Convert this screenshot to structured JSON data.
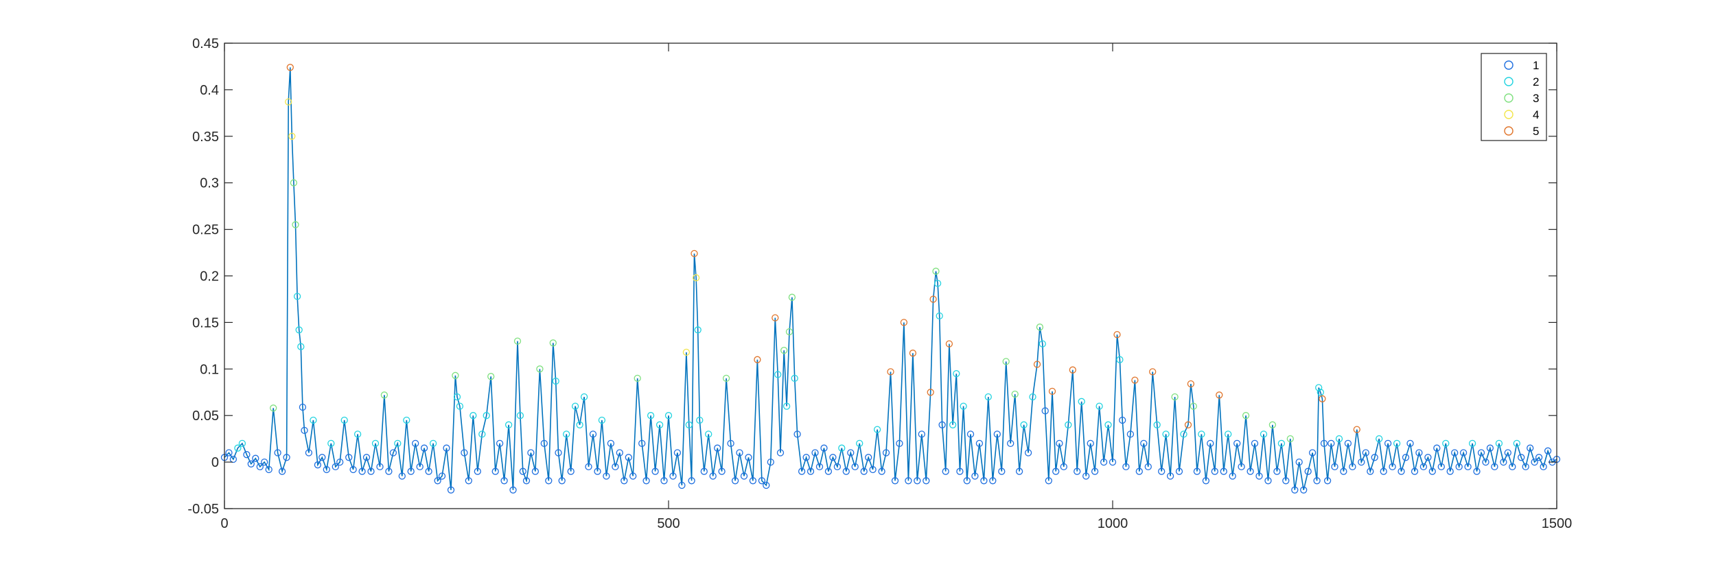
{
  "chart_data": {
    "type": "line",
    "title": "",
    "xlabel": "",
    "ylabel": "",
    "xlim": [
      0,
      1500
    ],
    "ylim": [
      -0.05,
      0.45
    ],
    "x_ticks": [
      0,
      500,
      1000,
      1500
    ],
    "x_tick_labels": [
      "0",
      "500",
      "1000",
      "1500"
    ],
    "y_ticks": [
      -0.05,
      0,
      0.05,
      0.1,
      0.15,
      0.2,
      0.25,
      0.3,
      0.35,
      0.4,
      0.45
    ],
    "y_tick_labels": [
      "-0.05",
      "0",
      "0.05",
      "0.1",
      "0.15",
      "0.2",
      "0.25",
      "0.3",
      "0.35",
      "0.4",
      "0.45"
    ],
    "grid": false,
    "legend_position": "top-right",
    "line_color": "#0072BD",
    "series": [
      {
        "name": "1",
        "color": "#1f6fe0"
      },
      {
        "name": "2",
        "color": "#21d3e0"
      },
      {
        "name": "3",
        "color": "#7fe07f"
      },
      {
        "name": "4",
        "color": "#f2e54a"
      },
      {
        "name": "5",
        "color": "#e0742a"
      }
    ],
    "points": [
      [
        0,
        0.005,
        1
      ],
      [
        5,
        0.01,
        1
      ],
      [
        10,
        0.003,
        1
      ],
      [
        15,
        0.015,
        2
      ],
      [
        20,
        0.02,
        2
      ],
      [
        25,
        0.008,
        1
      ],
      [
        30,
        -0.002,
        1
      ],
      [
        35,
        0.004,
        1
      ],
      [
        40,
        -0.005,
        1
      ],
      [
        45,
        0.0,
        1
      ],
      [
        50,
        -0.008,
        1
      ],
      [
        55,
        0.058,
        3
      ],
      [
        60,
        0.01,
        1
      ],
      [
        65,
        -0.01,
        1
      ],
      [
        70,
        0.005,
        1
      ],
      [
        72,
        0.387,
        4
      ],
      [
        74,
        0.424,
        5
      ],
      [
        76,
        0.35,
        4
      ],
      [
        78,
        0.3,
        3
      ],
      [
        80,
        0.255,
        3
      ],
      [
        82,
        0.178,
        2
      ],
      [
        84,
        0.142,
        2
      ],
      [
        86,
        0.124,
        2
      ],
      [
        88,
        0.059,
        1
      ],
      [
        90,
        0.034,
        1
      ],
      [
        95,
        0.01,
        1
      ],
      [
        100,
        0.045,
        2
      ],
      [
        105,
        -0.003,
        1
      ],
      [
        110,
        0.005,
        1
      ],
      [
        115,
        -0.008,
        1
      ],
      [
        120,
        0.02,
        2
      ],
      [
        125,
        -0.005,
        1
      ],
      [
        130,
        0.0,
        1
      ],
      [
        135,
        0.045,
        2
      ],
      [
        140,
        0.005,
        1
      ],
      [
        145,
        -0.008,
        1
      ],
      [
        150,
        0.03,
        2
      ],
      [
        155,
        -0.01,
        1
      ],
      [
        160,
        0.005,
        1
      ],
      [
        165,
        -0.01,
        1
      ],
      [
        170,
        0.02,
        2
      ],
      [
        175,
        -0.005,
        1
      ],
      [
        180,
        0.072,
        3
      ],
      [
        185,
        -0.01,
        1
      ],
      [
        190,
        0.01,
        1
      ],
      [
        195,
        0.02,
        2
      ],
      [
        200,
        -0.015,
        1
      ],
      [
        205,
        0.045,
        2
      ],
      [
        210,
        -0.01,
        1
      ],
      [
        215,
        0.02,
        1
      ],
      [
        220,
        -0.005,
        1
      ],
      [
        225,
        0.015,
        1
      ],
      [
        230,
        -0.01,
        1
      ],
      [
        235,
        0.02,
        2
      ],
      [
        240,
        -0.02,
        1
      ],
      [
        245,
        -0.015,
        1
      ],
      [
        250,
        0.015,
        1
      ],
      [
        255,
        -0.03,
        1
      ],
      [
        260,
        0.093,
        3
      ],
      [
        262,
        0.07,
        2
      ],
      [
        265,
        0.06,
        2
      ],
      [
        270,
        0.01,
        1
      ],
      [
        275,
        -0.02,
        1
      ],
      [
        280,
        0.05,
        2
      ],
      [
        285,
        -0.01,
        1
      ],
      [
        290,
        0.03,
        2
      ],
      [
        295,
        0.05,
        2
      ],
      [
        300,
        0.092,
        3
      ],
      [
        305,
        -0.01,
        1
      ],
      [
        310,
        0.02,
        1
      ],
      [
        315,
        -0.02,
        1
      ],
      [
        320,
        0.04,
        2
      ],
      [
        325,
        -0.03,
        1
      ],
      [
        330,
        0.13,
        3
      ],
      [
        333,
        0.05,
        2
      ],
      [
        336,
        -0.01,
        1
      ],
      [
        340,
        -0.02,
        1
      ],
      [
        345,
        0.01,
        1
      ],
      [
        350,
        -0.01,
        1
      ],
      [
        355,
        0.1,
        3
      ],
      [
        360,
        0.02,
        1
      ],
      [
        365,
        -0.02,
        1
      ],
      [
        370,
        0.128,
        3
      ],
      [
        373,
        0.087,
        2
      ],
      [
        376,
        0.01,
        1
      ],
      [
        380,
        -0.02,
        1
      ],
      [
        385,
        0.03,
        2
      ],
      [
        390,
        -0.01,
        1
      ],
      [
        395,
        0.06,
        2
      ],
      [
        400,
        0.04,
        2
      ],
      [
        405,
        0.07,
        2
      ],
      [
        410,
        -0.005,
        1
      ],
      [
        415,
        0.03,
        1
      ],
      [
        420,
        -0.01,
        1
      ],
      [
        425,
        0.045,
        2
      ],
      [
        430,
        -0.015,
        1
      ],
      [
        435,
        0.02,
        1
      ],
      [
        440,
        -0.005,
        1
      ],
      [
        445,
        0.01,
        1
      ],
      [
        450,
        -0.02,
        1
      ],
      [
        455,
        0.005,
        1
      ],
      [
        460,
        -0.015,
        1
      ],
      [
        465,
        0.09,
        3
      ],
      [
        470,
        0.02,
        1
      ],
      [
        475,
        -0.02,
        1
      ],
      [
        480,
        0.05,
        2
      ],
      [
        485,
        -0.01,
        1
      ],
      [
        490,
        0.04,
        2
      ],
      [
        495,
        -0.02,
        1
      ],
      [
        500,
        0.05,
        2
      ],
      [
        505,
        -0.015,
        1
      ],
      [
        510,
        0.01,
        1
      ],
      [
        515,
        -0.025,
        1
      ],
      [
        520,
        0.118,
        4
      ],
      [
        523,
        0.04,
        2
      ],
      [
        526,
        -0.02,
        1
      ],
      [
        529,
        0.224,
        5
      ],
      [
        531,
        0.198,
        4
      ],
      [
        533,
        0.142,
        2
      ],
      [
        535,
        0.045,
        2
      ],
      [
        540,
        -0.01,
        1
      ],
      [
        545,
        0.03,
        2
      ],
      [
        550,
        -0.015,
        1
      ],
      [
        555,
        0.015,
        1
      ],
      [
        560,
        -0.01,
        1
      ],
      [
        565,
        0.09,
        3
      ],
      [
        570,
        0.02,
        1
      ],
      [
        575,
        -0.02,
        1
      ],
      [
        580,
        0.01,
        1
      ],
      [
        585,
        -0.015,
        1
      ],
      [
        590,
        0.005,
        1
      ],
      [
        595,
        -0.02,
        1
      ],
      [
        600,
        0.11,
        5
      ],
      [
        605,
        -0.02,
        1
      ],
      [
        610,
        -0.025,
        1
      ],
      [
        615,
        0.0,
        1
      ],
      [
        620,
        0.155,
        5
      ],
      [
        623,
        0.094,
        2
      ],
      [
        626,
        0.01,
        1
      ],
      [
        630,
        0.12,
        3
      ],
      [
        633,
        0.06,
        2
      ],
      [
        636,
        0.14,
        3
      ],
      [
        639,
        0.177,
        3
      ],
      [
        642,
        0.09,
        2
      ],
      [
        645,
        0.03,
        1
      ],
      [
        650,
        -0.01,
        1
      ],
      [
        655,
        0.005,
        1
      ],
      [
        660,
        -0.01,
        1
      ],
      [
        665,
        0.01,
        1
      ],
      [
        670,
        -0.005,
        1
      ],
      [
        675,
        0.015,
        1
      ],
      [
        680,
        -0.01,
        1
      ],
      [
        685,
        0.005,
        1
      ],
      [
        690,
        -0.005,
        1
      ],
      [
        695,
        0.015,
        2
      ],
      [
        700,
        -0.01,
        1
      ],
      [
        705,
        0.01,
        1
      ],
      [
        710,
        -0.005,
        1
      ],
      [
        715,
        0.02,
        2
      ],
      [
        720,
        -0.01,
        1
      ],
      [
        725,
        0.005,
        1
      ],
      [
        730,
        -0.008,
        1
      ],
      [
        735,
        0.035,
        2
      ],
      [
        740,
        -0.01,
        1
      ],
      [
        745,
        0.01,
        1
      ],
      [
        750,
        0.097,
        5
      ],
      [
        755,
        -0.02,
        1
      ],
      [
        760,
        0.02,
        1
      ],
      [
        765,
        0.15,
        5
      ],
      [
        770,
        -0.02,
        1
      ],
      [
        775,
        0.117,
        5
      ],
      [
        780,
        -0.02,
        1
      ],
      [
        785,
        0.03,
        1
      ],
      [
        790,
        -0.02,
        1
      ],
      [
        795,
        0.075,
        5
      ],
      [
        798,
        0.175,
        5
      ],
      [
        801,
        0.205,
        3
      ],
      [
        803,
        0.192,
        2
      ],
      [
        805,
        0.157,
        2
      ],
      [
        808,
        0.04,
        1
      ],
      [
        812,
        -0.01,
        1
      ],
      [
        816,
        0.127,
        5
      ],
      [
        820,
        0.04,
        2
      ],
      [
        824,
        0.095,
        2
      ],
      [
        828,
        -0.01,
        1
      ],
      [
        832,
        0.06,
        2
      ],
      [
        836,
        -0.02,
        1
      ],
      [
        840,
        0.03,
        1
      ],
      [
        845,
        -0.015,
        1
      ],
      [
        850,
        0.02,
        1
      ],
      [
        855,
        -0.02,
        1
      ],
      [
        860,
        0.07,
        2
      ],
      [
        865,
        -0.02,
        1
      ],
      [
        870,
        0.03,
        1
      ],
      [
        875,
        -0.01,
        1
      ],
      [
        880,
        0.108,
        3
      ],
      [
        885,
        0.02,
        1
      ],
      [
        890,
        0.073,
        3
      ],
      [
        895,
        -0.01,
        1
      ],
      [
        900,
        0.04,
        2
      ],
      [
        905,
        0.01,
        1
      ],
      [
        910,
        0.07,
        2
      ],
      [
        915,
        0.105,
        5
      ],
      [
        918,
        0.145,
        3
      ],
      [
        921,
        0.127,
        2
      ],
      [
        924,
        0.055,
        1
      ],
      [
        928,
        -0.02,
        1
      ],
      [
        932,
        0.076,
        5
      ],
      [
        936,
        -0.01,
        1
      ],
      [
        940,
        0.02,
        1
      ],
      [
        945,
        -0.005,
        1
      ],
      [
        950,
        0.04,
        2
      ],
      [
        955,
        0.099,
        5
      ],
      [
        960,
        -0.01,
        1
      ],
      [
        965,
        0.065,
        2
      ],
      [
        970,
        -0.015,
        1
      ],
      [
        975,
        0.02,
        1
      ],
      [
        980,
        -0.01,
        1
      ],
      [
        985,
        0.06,
        2
      ],
      [
        990,
        0.0,
        1
      ],
      [
        995,
        0.04,
        2
      ],
      [
        1000,
        0.0,
        1
      ],
      [
        1005,
        0.137,
        5
      ],
      [
        1008,
        0.11,
        2
      ],
      [
        1011,
        0.045,
        1
      ],
      [
        1015,
        -0.005,
        1
      ],
      [
        1020,
        0.03,
        1
      ],
      [
        1025,
        0.088,
        5
      ],
      [
        1030,
        -0.01,
        1
      ],
      [
        1035,
        0.02,
        1
      ],
      [
        1040,
        -0.005,
        1
      ],
      [
        1045,
        0.097,
        5
      ],
      [
        1050,
        0.04,
        2
      ],
      [
        1055,
        -0.01,
        1
      ],
      [
        1060,
        0.03,
        2
      ],
      [
        1065,
        -0.015,
        1
      ],
      [
        1070,
        0.07,
        3
      ],
      [
        1075,
        -0.01,
        1
      ],
      [
        1080,
        0.03,
        2
      ],
      [
        1085,
        0.04,
        5
      ],
      [
        1088,
        0.084,
        5
      ],
      [
        1091,
        0.06,
        3
      ],
      [
        1095,
        -0.01,
        1
      ],
      [
        1100,
        0.03,
        2
      ],
      [
        1105,
        -0.02,
        1
      ],
      [
        1110,
        0.02,
        1
      ],
      [
        1115,
        -0.01,
        1
      ],
      [
        1120,
        0.072,
        5
      ],
      [
        1125,
        -0.01,
        1
      ],
      [
        1130,
        0.03,
        2
      ],
      [
        1135,
        -0.015,
        1
      ],
      [
        1140,
        0.02,
        1
      ],
      [
        1145,
        -0.005,
        1
      ],
      [
        1150,
        0.05,
        3
      ],
      [
        1155,
        -0.01,
        1
      ],
      [
        1160,
        0.02,
        1
      ],
      [
        1165,
        -0.015,
        1
      ],
      [
        1170,
        0.03,
        2
      ],
      [
        1175,
        -0.02,
        1
      ],
      [
        1180,
        0.04,
        3
      ],
      [
        1185,
        -0.01,
        1
      ],
      [
        1190,
        0.02,
        2
      ],
      [
        1195,
        -0.02,
        1
      ],
      [
        1200,
        0.025,
        3
      ],
      [
        1205,
        -0.03,
        1
      ],
      [
        1210,
        0.0,
        1
      ],
      [
        1215,
        -0.03,
        1
      ],
      [
        1220,
        -0.01,
        1
      ],
      [
        1225,
        0.01,
        1
      ],
      [
        1230,
        -0.02,
        1
      ],
      [
        1232,
        0.08,
        2
      ],
      [
        1234,
        0.075,
        2
      ],
      [
        1236,
        0.068,
        5
      ],
      [
        1238,
        0.02,
        1
      ],
      [
        1242,
        -0.02,
        1
      ],
      [
        1246,
        0.02,
        1
      ],
      [
        1250,
        -0.005,
        1
      ],
      [
        1255,
        0.025,
        2
      ],
      [
        1260,
        -0.01,
        1
      ],
      [
        1265,
        0.02,
        1
      ],
      [
        1270,
        -0.005,
        1
      ],
      [
        1275,
        0.035,
        5
      ],
      [
        1280,
        0.0,
        1
      ],
      [
        1285,
        0.01,
        1
      ],
      [
        1290,
        -0.01,
        1
      ],
      [
        1295,
        0.005,
        1
      ],
      [
        1300,
        0.025,
        2
      ],
      [
        1305,
        -0.01,
        1
      ],
      [
        1310,
        0.02,
        1
      ],
      [
        1315,
        -0.005,
        1
      ],
      [
        1320,
        0.02,
        2
      ],
      [
        1325,
        -0.01,
        1
      ],
      [
        1330,
        0.005,
        1
      ],
      [
        1335,
        0.02,
        1
      ],
      [
        1340,
        -0.01,
        1
      ],
      [
        1345,
        0.01,
        1
      ],
      [
        1350,
        -0.005,
        1
      ],
      [
        1355,
        0.005,
        1
      ],
      [
        1360,
        -0.01,
        1
      ],
      [
        1365,
        0.015,
        1
      ],
      [
        1370,
        -0.005,
        1
      ],
      [
        1375,
        0.02,
        2
      ],
      [
        1380,
        -0.01,
        1
      ],
      [
        1385,
        0.01,
        1
      ],
      [
        1390,
        -0.005,
        1
      ],
      [
        1395,
        0.01,
        1
      ],
      [
        1400,
        -0.005,
        1
      ],
      [
        1405,
        0.02,
        2
      ],
      [
        1410,
        -0.01,
        1
      ],
      [
        1415,
        0.01,
        1
      ],
      [
        1420,
        0.0,
        1
      ],
      [
        1425,
        0.015,
        1
      ],
      [
        1430,
        -0.005,
        1
      ],
      [
        1435,
        0.02,
        2
      ],
      [
        1440,
        0.0,
        1
      ],
      [
        1445,
        0.01,
        1
      ],
      [
        1450,
        -0.005,
        1
      ],
      [
        1455,
        0.02,
        2
      ],
      [
        1460,
        0.005,
        1
      ],
      [
        1465,
        -0.005,
        1
      ],
      [
        1470,
        0.015,
        1
      ],
      [
        1475,
        0.0,
        1
      ],
      [
        1480,
        0.005,
        1
      ],
      [
        1485,
        -0.005,
        1
      ],
      [
        1490,
        0.012,
        1
      ],
      [
        1495,
        0.0,
        1
      ],
      [
        1500,
        0.003,
        1
      ]
    ]
  }
}
